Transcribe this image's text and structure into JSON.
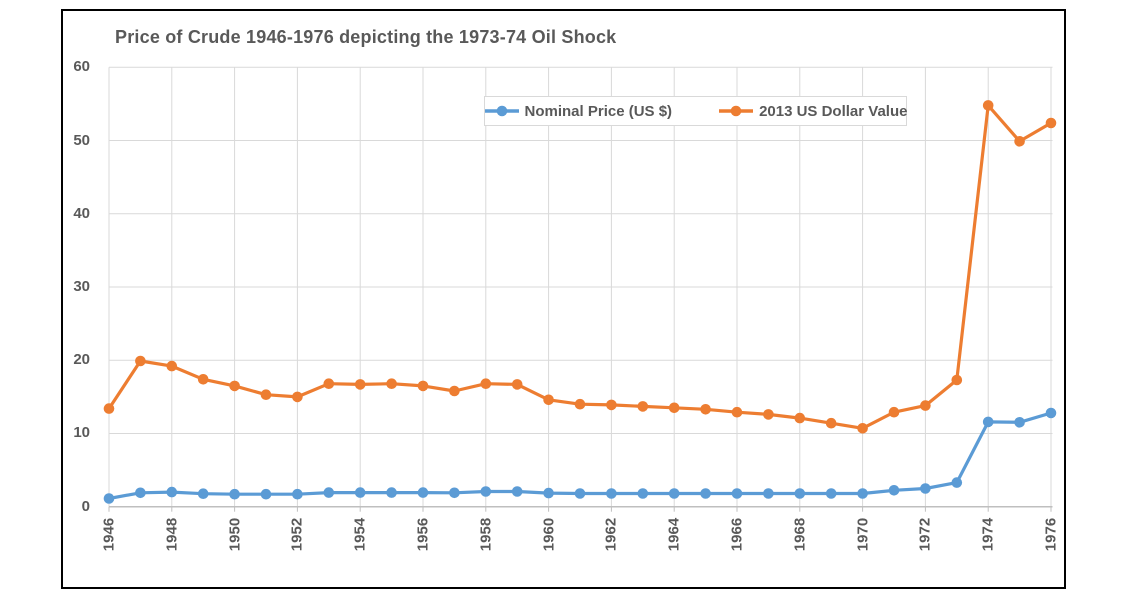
{
  "frame": {
    "border_color": "#000000",
    "background": "#FFFFFF"
  },
  "chart_data": {
    "type": "line",
    "title": "Price of Crude 1946-1976 depicting the 1973-74 Oil Shock",
    "x": [
      1946,
      1947,
      1948,
      1949,
      1950,
      1951,
      1952,
      1953,
      1954,
      1955,
      1956,
      1957,
      1958,
      1959,
      1960,
      1961,
      1962,
      1963,
      1964,
      1965,
      1966,
      1967,
      1968,
      1969,
      1970,
      1971,
      1972,
      1973,
      1974,
      1975,
      1976
    ],
    "series": [
      {
        "name": "Nominal Price (US $)",
        "color": "#5B9BD5",
        "values": [
          1.12,
          1.9,
          1.99,
          1.78,
          1.71,
          1.71,
          1.71,
          1.93,
          1.93,
          1.93,
          1.93,
          1.9,
          2.08,
          2.08,
          1.86,
          1.8,
          1.8,
          1.8,
          1.8,
          1.8,
          1.8,
          1.8,
          1.8,
          1.8,
          1.8,
          2.24,
          2.48,
          3.29,
          11.58,
          11.53,
          12.8
        ]
      },
      {
        "name": "2013 US Dollar Value",
        "color": "#ED7D31",
        "values": [
          13.4,
          19.9,
          19.2,
          17.4,
          16.5,
          15.3,
          15.0,
          16.8,
          16.7,
          16.8,
          16.5,
          15.8,
          16.8,
          16.7,
          14.6,
          14.0,
          13.9,
          13.7,
          13.5,
          13.3,
          12.9,
          12.6,
          12.1,
          11.4,
          10.7,
          12.9,
          13.8,
          17.3,
          54.8,
          49.9,
          52.4
        ]
      }
    ],
    "xlabel": "",
    "ylabel": "",
    "ylim": [
      0,
      60
    ],
    "y_ticks": [
      0,
      10,
      20,
      30,
      40,
      50,
      60
    ],
    "x_tick_labels": [
      "1946",
      "1948",
      "1950",
      "1952",
      "1954",
      "1956",
      "1958",
      "1960",
      "1962",
      "1964",
      "1966",
      "1968",
      "1970",
      "1972",
      "1974",
      "1976"
    ],
    "grid": true,
    "legend_position": "top-center-inside",
    "styles": {
      "text_color": "#595959",
      "gridline_color": "#D9D9D9",
      "axis_color": "#BFBFBF",
      "plot_background": "#FFFFFF"
    }
  }
}
